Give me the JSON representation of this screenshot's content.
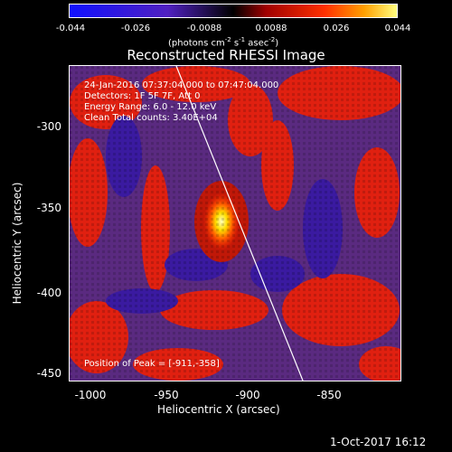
{
  "colorbar": {
    "tick_labels": [
      "-0.044",
      "-0.026",
      "-0.0088",
      "0.0088",
      "0.026",
      "0.044"
    ],
    "unit_base": "(photons cm",
    "unit_exp1": "-2",
    "unit_mid1": " s",
    "unit_exp2": "-1",
    "unit_mid2": " asec",
    "unit_exp3": "-2",
    "unit_end": ")"
  },
  "title": "Reconstructed RHESSI Image",
  "info": {
    "time": "24-Jan-2016 07:37:04.000 to 07:47:04.000",
    "detectors": "Detectors: 1F 5F 7F, Att 0",
    "energy": "Energy Range: 6.0 - 12.0 keV",
    "clean": "Clean     Total counts: 3.40E+04",
    "peak": "Position of Peak = [-911,-358]"
  },
  "axes": {
    "xlabel": "Heliocentric X (arcsec)",
    "ylabel": "Heliocentric Y (arcsec)",
    "xticks": [
      "-1000",
      "-950",
      "-900",
      "-850"
    ],
    "yticks": [
      "-300",
      "-350",
      "-400",
      "-450"
    ]
  },
  "footer": "1-Oct-2017 16:12",
  "colors": {
    "neg": "#1010ff",
    "mid": "#000000",
    "pos_red": "#ff2000",
    "pos_yellow": "#ffff60"
  }
}
